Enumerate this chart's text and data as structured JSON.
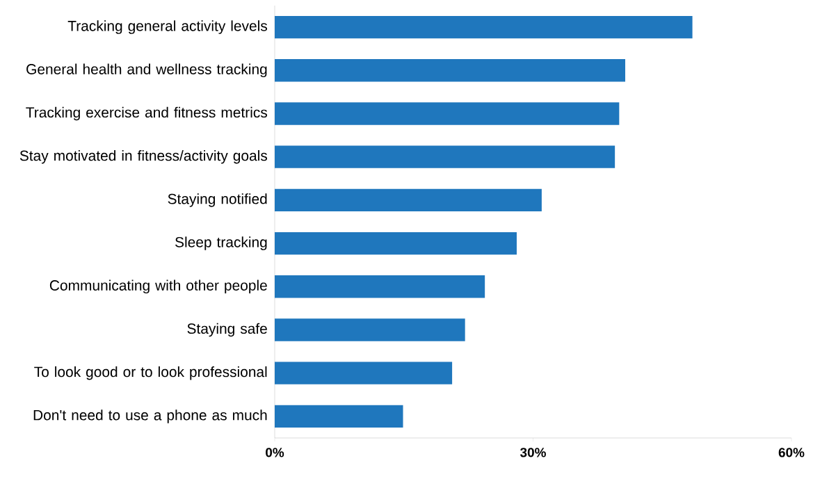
{
  "chart_data": {
    "type": "bar",
    "orientation": "horizontal",
    "color": "#1f77bd",
    "categories": [
      "Tracking general activity levels",
      "General health and wellness tracking",
      "Tracking exercise and fitness metrics",
      "Stay motivated in fitness/activity goals",
      "Staying notified",
      "Sleep tracking",
      "Communicating with other people",
      "Staying safe",
      "To look good or to look professional",
      "Don't need to use a phone as much"
    ],
    "values": [
      48.5,
      40.7,
      40.0,
      39.5,
      31.0,
      28.1,
      24.4,
      22.1,
      20.6,
      14.9
    ],
    "xlim": [
      0,
      60
    ],
    "xticks": [
      {
        "value": 0,
        "label": "0%"
      },
      {
        "value": 30,
        "label": "30%"
      },
      {
        "value": 60,
        "label": "60%"
      }
    ],
    "grid": false
  }
}
